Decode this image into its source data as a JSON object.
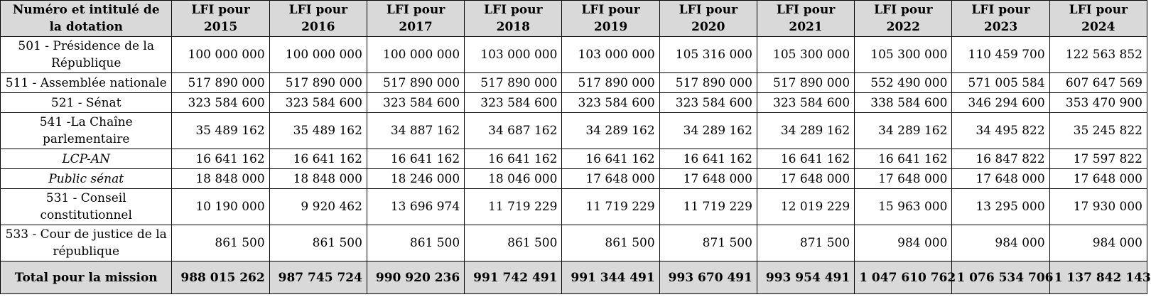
{
  "table": {
    "headers": [
      "Numéro et intitulé de la dotation",
      "LFI pour 2015",
      "LFI pour 2016",
      "LFI pour 2017",
      "LFI pour 2018",
      "LFI pour 2019",
      "LFI pour 2020",
      "LFI pour 2021",
      "LFI pour 2022",
      "LFI pour 2023",
      "LFI pour 2024"
    ],
    "rows": [
      {
        "label": "501 - Présidence de la République",
        "values": [
          "100 000 000",
          "100 000 000",
          "100 000 000",
          "103 000 000",
          "103 000 000",
          "105 316 000",
          "105 300 000",
          "105 300 000",
          "110 459 700",
          "122 563 852"
        ]
      },
      {
        "label": "511 - Assemblée nationale",
        "values": [
          "517 890 000",
          "517 890 000",
          "517 890 000",
          "517 890 000",
          "517 890 000",
          "517 890 000",
          "517 890 000",
          "552 490 000",
          "571 005 584",
          "607 647 569"
        ]
      },
      {
        "label": "521 - Sénat",
        "values": [
          "323 584 600",
          "323 584 600",
          "323 584 600",
          "323 584 600",
          "323 584 600",
          "323 584 600",
          "323 584 600",
          "338 584 600",
          "346 294 600",
          "353 470 900"
        ]
      },
      {
        "label": "541 -La Chaîne parlementaire",
        "values": [
          "35 489 162",
          "35 489 162",
          "34 887 162",
          "34 687 162",
          "34 289 162",
          "34 289 162",
          "34 289 162",
          "34 289 162",
          "34 495 822",
          "35 245 822"
        ]
      },
      {
        "label": "LCP-AN",
        "values": [
          "16 641 162",
          "16 641 162",
          "16 641 162",
          "16 641 162",
          "16 641 162",
          "16 641 162",
          "16 641 162",
          "16 641 162",
          "16 847 822",
          "17 597 822"
        ]
      },
      {
        "label": "Public sénat",
        "values": [
          "18 848 000",
          "18 848 000",
          "18 246 000",
          "18 046 000",
          "17 648 000",
          "17 648 000",
          "17 648 000",
          "17 648 000",
          "17 648 000",
          "17 648 000"
        ]
      },
      {
        "label": "531 - Conseil constitutionnel",
        "values": [
          "10 190 000",
          "9 920 462",
          "13 696 974",
          "11 719 229",
          "11 719 229",
          "11 719 229",
          "12 019 229",
          "15 963 000",
          "13 295 000",
          "17 930 000"
        ]
      },
      {
        "label": "533 - Cour de justice de la république",
        "values": [
          "861 500",
          "861 500",
          "861 500",
          "861 500",
          "861 500",
          "871 500",
          "871 500",
          "984 000",
          "984 000",
          "984 000"
        ]
      }
    ],
    "total": {
      "label": "Total pour la mission",
      "values": [
        "988 015 262",
        "987 745 724",
        "990 920 236",
        "991 742 491",
        "991 344 491",
        "993 670 491",
        "993 954 491",
        "1 047 610 762",
        "1 076 534 706",
        "1 137 842 143"
      ]
    }
  }
}
